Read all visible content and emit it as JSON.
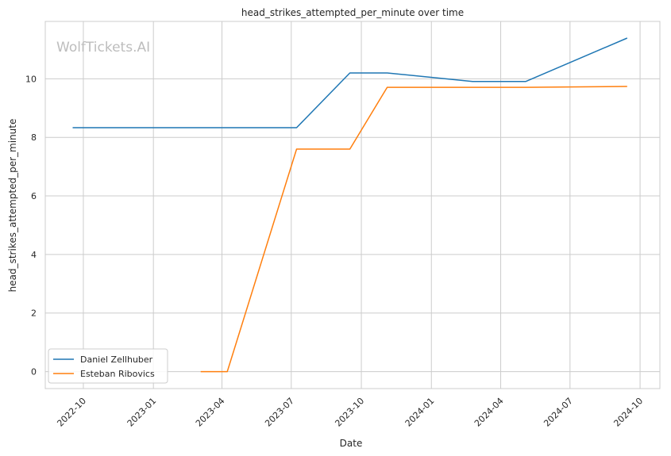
{
  "chart_data": {
    "type": "line",
    "title": "head_strikes_attempted_per_minute over time",
    "xlabel": "Date",
    "ylabel": "head_strikes_attempted_per_minute",
    "watermark": "WolfTickets.AI",
    "x_axis_type": "date",
    "xlim": [
      "2022-08-12",
      "2024-10-27"
    ],
    "ylim": [
      -0.58,
      11.96
    ],
    "x_ticks": [
      "2022-10",
      "2023-01",
      "2023-04",
      "2023-07",
      "2023-10",
      "2024-01",
      "2024-04",
      "2024-07",
      "2024-10"
    ],
    "x_tick_dates": [
      "2022-10-01",
      "2023-01-01",
      "2023-04-01",
      "2023-07-01",
      "2023-10-01",
      "2024-01-01",
      "2024-04-01",
      "2024-07-01",
      "2024-10-01"
    ],
    "y_ticks": [
      0,
      2,
      4,
      6,
      8,
      10
    ],
    "grid": true,
    "legend_position": "lower-left",
    "series": [
      {
        "name": "Daniel Zellhuber",
        "color": "#1f77b4",
        "x": [
          "2022-09-17",
          "2023-07-08",
          "2023-09-16",
          "2023-11-04",
          "2024-02-24",
          "2024-05-04",
          "2024-09-14"
        ],
        "y": [
          8.33,
          8.33,
          10.2,
          10.2,
          9.91,
          9.91,
          11.39
        ]
      },
      {
        "name": "Esteban Ribovics",
        "color": "#ff7f0e",
        "x": [
          "2023-03-04",
          "2023-04-08",
          "2023-07-08",
          "2023-09-16",
          "2023-11-04",
          "2024-05-04",
          "2024-09-14"
        ],
        "y": [
          0.0,
          0.0,
          7.6,
          7.6,
          9.71,
          9.71,
          9.74
        ]
      }
    ]
  }
}
